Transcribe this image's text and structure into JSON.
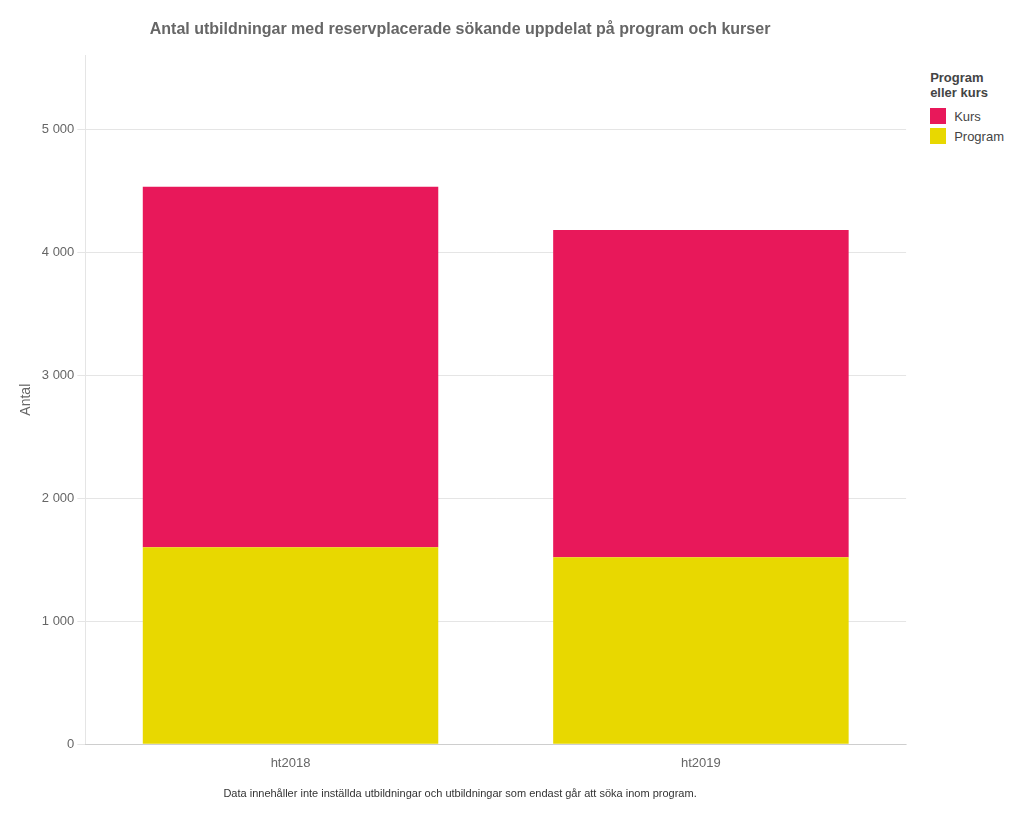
{
  "chart_data": {
    "type": "bar",
    "title": "Antal utbildningar med reservplacerade sökande uppdelat på program och kurser",
    "ylabel": "Antal",
    "categories": [
      "ht2018",
      "ht2019"
    ],
    "series": [
      {
        "name": "Program",
        "color": "#E8D800",
        "values": [
          1600,
          1520
        ]
      },
      {
        "name": "Kurs",
        "color": "#E8185A",
        "values": [
          2930,
          2660
        ]
      }
    ],
    "stacked": true,
    "ylim": [
      0,
      5600
    ],
    "yticks": [
      0,
      {
        "value": 1000,
        "label": "1 000"
      },
      {
        "value": 2000,
        "label": "2 000"
      },
      {
        "value": 3000,
        "label": "3 000"
      },
      {
        "value": 4000,
        "label": "4 000"
      },
      {
        "value": 5000,
        "label": "5 000"
      }
    ],
    "grid": true,
    "legend": "upper right",
    "legend_title": "Program\neller kurs",
    "footnote": "Data innehåller inte inställda utbildningar och utbildningar som endast går att söka inom program."
  }
}
